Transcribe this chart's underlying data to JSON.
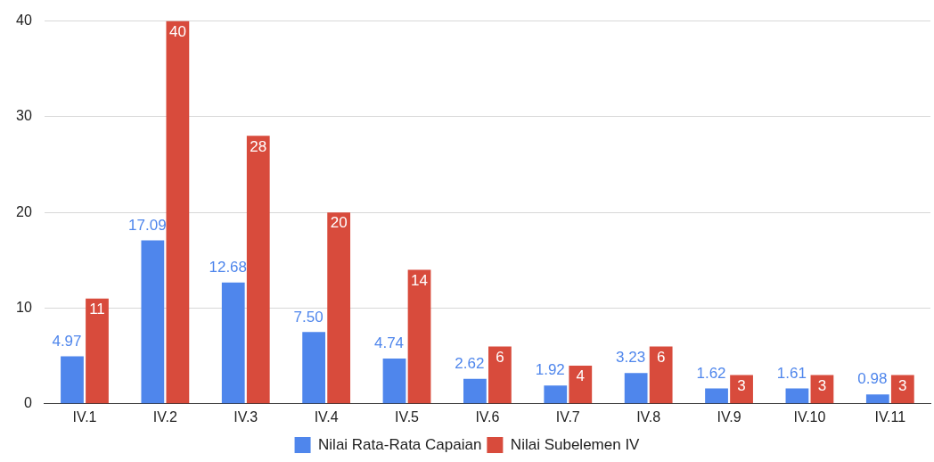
{
  "chart_data": {
    "type": "bar",
    "categories": [
      "IV.1",
      "IV.2",
      "IV.3",
      "IV.4",
      "IV.5",
      "IV.6",
      "IV.7",
      "IV.8",
      "IV.9",
      "IV.10",
      "IV.11"
    ],
    "series": [
      {
        "name": "Nilai Rata-Rata Capaian",
        "color": "#4f86ec",
        "values": [
          4.97,
          17.09,
          12.68,
          7.5,
          4.74,
          2.62,
          1.92,
          3.23,
          1.62,
          1.61,
          0.98
        ],
        "value_labels": [
          "4.97",
          "17.09",
          "12.68",
          "7.50",
          "4.74",
          "2.62",
          "1.92",
          "3.23",
          "1.62",
          "1.61",
          "0.98"
        ]
      },
      {
        "name": "Nilai Subelemen IV",
        "color": "#d84b3c",
        "values": [
          11,
          40,
          28,
          20,
          14,
          6,
          4,
          6,
          3,
          3,
          3
        ],
        "value_labels": [
          "11",
          "40",
          "28",
          "20",
          "14",
          "6",
          "4",
          "6",
          "3",
          "3",
          "3"
        ]
      }
    ],
    "ylim": [
      0,
      40
    ],
    "yticks": [
      0,
      10,
      20,
      30,
      40
    ],
    "grid": "y",
    "legend": "bottom"
  }
}
